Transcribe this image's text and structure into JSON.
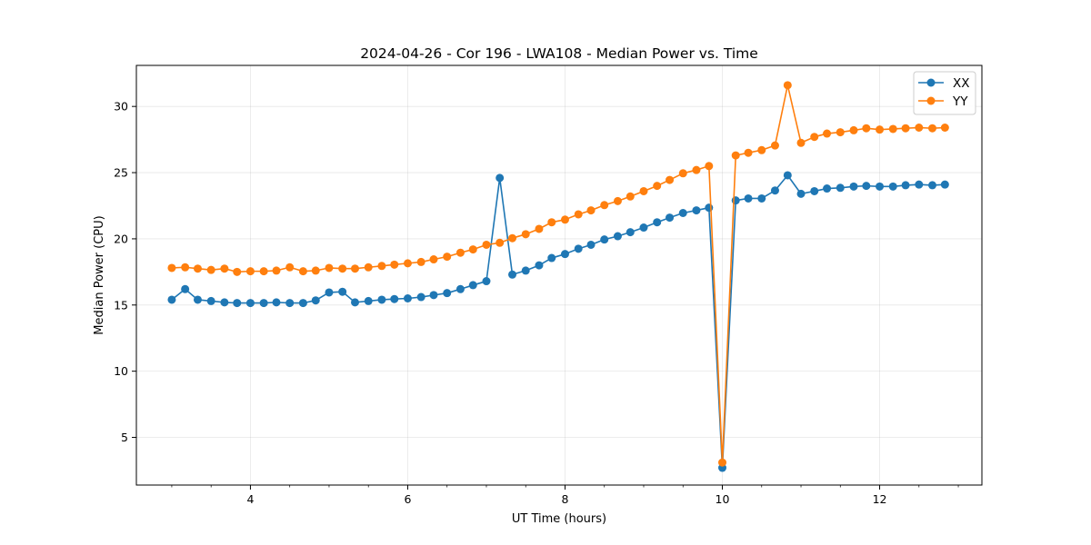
{
  "chart_data": {
    "type": "line",
    "title": "2024-04-26 - Cor 196 - LWA108 - Median Power vs. Time",
    "xlabel": "UT Time (hours)",
    "ylabel": "Median Power (CPU)",
    "xlim": [
      2.55,
      13.3
    ],
    "ylim": [
      1.4,
      33.1
    ],
    "x_ticks": [
      4,
      6,
      8,
      10,
      12
    ],
    "x_tick_labels": [
      "4",
      "6",
      "8",
      "10",
      "12"
    ],
    "x_minor_step": 0.5,
    "y_ticks": [
      5,
      10,
      15,
      20,
      25,
      30
    ],
    "y_tick_labels": [
      "5",
      "10",
      "15",
      "20",
      "25",
      "30"
    ],
    "grid": true,
    "legend_position": "top-right",
    "x": [
      3.0,
      3.17,
      3.33,
      3.5,
      3.67,
      3.83,
      4.0,
      4.17,
      4.33,
      4.5,
      4.67,
      4.83,
      5.0,
      5.17,
      5.33,
      5.5,
      5.67,
      5.83,
      6.0,
      6.17,
      6.33,
      6.5,
      6.67,
      6.83,
      7.0,
      7.17,
      7.33,
      7.5,
      7.67,
      7.83,
      8.0,
      8.17,
      8.33,
      8.5,
      8.67,
      8.83,
      9.0,
      9.17,
      9.33,
      9.5,
      9.67,
      9.83,
      10.0,
      10.17,
      10.33,
      10.5,
      10.67,
      10.83,
      11.0,
      11.17,
      11.33,
      11.5,
      11.67,
      11.83,
      12.0,
      12.17,
      12.33,
      12.5,
      12.67,
      12.83
    ],
    "series": [
      {
        "name": "XX",
        "color": "#1f77b4",
        "values": [
          15.4,
          16.2,
          15.4,
          15.3,
          15.2,
          15.15,
          15.15,
          15.15,
          15.2,
          15.15,
          15.15,
          15.35,
          15.95,
          16.0,
          15.2,
          15.3,
          15.4,
          15.45,
          15.5,
          15.6,
          15.75,
          15.9,
          16.2,
          16.5,
          16.8,
          24.6,
          17.3,
          17.6,
          18.0,
          18.55,
          18.85,
          19.25,
          19.55,
          19.95,
          20.2,
          20.5,
          20.85,
          21.25,
          21.6,
          21.95,
          22.15,
          22.35,
          2.7,
          22.9,
          23.05,
          23.05,
          23.65,
          24.8,
          23.4,
          23.6,
          23.8,
          23.85,
          23.95,
          24.0,
          23.95,
          23.95,
          24.05,
          24.1,
          24.05,
          24.1
        ]
      },
      {
        "name": "YY",
        "color": "#ff7f0e",
        "values": [
          17.8,
          17.85,
          17.75,
          17.65,
          17.75,
          17.5,
          17.55,
          17.55,
          17.6,
          17.85,
          17.55,
          17.6,
          17.8,
          17.75,
          17.75,
          17.85,
          17.95,
          18.05,
          18.15,
          18.25,
          18.45,
          18.65,
          18.95,
          19.2,
          19.55,
          19.7,
          20.05,
          20.35,
          20.75,
          21.25,
          21.45,
          21.85,
          22.15,
          22.55,
          22.85,
          23.2,
          23.6,
          24.0,
          24.45,
          24.95,
          25.2,
          25.5,
          3.1,
          26.3,
          26.5,
          26.7,
          27.05,
          31.6,
          27.25,
          27.7,
          27.95,
          28.05,
          28.2,
          28.35,
          28.25,
          28.3,
          28.35,
          28.4,
          28.35,
          28.4
        ]
      }
    ]
  }
}
